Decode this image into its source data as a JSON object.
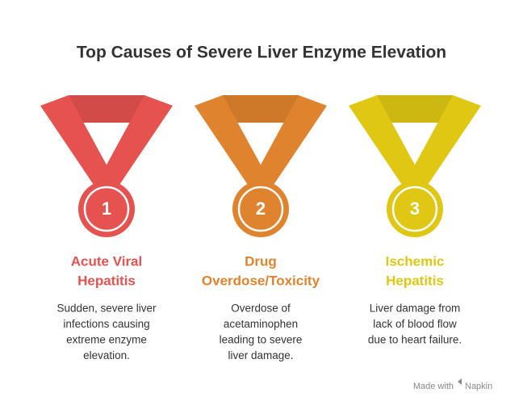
{
  "title": "Top Causes of Severe Liver Enzyme Elevation",
  "items": [
    {
      "number": "1",
      "color": "#e5524f",
      "title": [
        "Acute Viral",
        "Hepatitis"
      ],
      "description": [
        "Sudden, severe liver",
        "infections causing",
        "extreme enzyme",
        "elevation."
      ]
    },
    {
      "number": "2",
      "color": "#e0832e",
      "title": [
        "Drug",
        "Overdose/Toxicity"
      ],
      "description": [
        "Overdose of",
        "acetaminophen",
        "leading to severe",
        "liver damage."
      ]
    },
    {
      "number": "3",
      "color": "#dfc713",
      "title": [
        "Ischemic",
        "Hepatitis"
      ],
      "description": [
        "Liver damage from",
        "lack of blood flow",
        "due to heart failure."
      ]
    }
  ],
  "footer": {
    "text": "Made with",
    "brand": "Napkin"
  }
}
